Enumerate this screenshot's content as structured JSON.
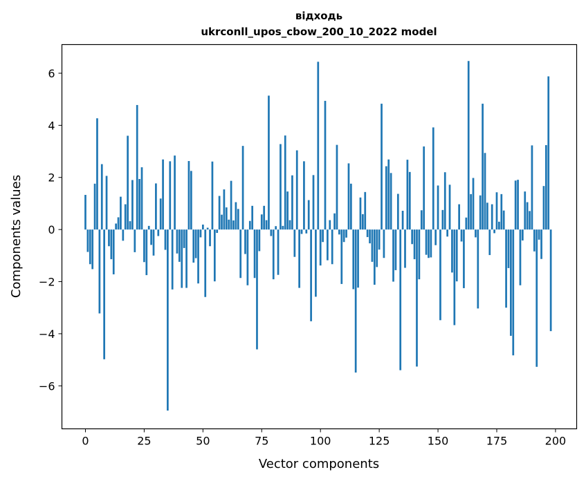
{
  "chart_data": {
    "type": "bar",
    "title_line1": "відходь",
    "title_line2": "ukrconll_upos_cbow_200_10_2022 model",
    "xlabel": "Vector components",
    "ylabel": "Components values",
    "xlim": [
      -10,
      209
    ],
    "ylim": [
      -7.65,
      7.1
    ],
    "xticks": [
      0,
      25,
      50,
      75,
      100,
      125,
      150,
      175,
      200
    ],
    "xtick_labels": [
      "0",
      "25",
      "50",
      "75",
      "100",
      "125",
      "150",
      "175",
      "200"
    ],
    "yticks": [
      -6,
      -4,
      -2,
      0,
      2,
      4,
      6
    ],
    "ytick_labels": [
      "−6",
      "−4",
      "−2",
      "0",
      "2",
      "4",
      "6"
    ],
    "bar_color": "#1f77b4",
    "grid": false,
    "values": [
      1.33,
      -0.86,
      -1.33,
      -1.52,
      1.76,
      4.27,
      -3.22,
      2.51,
      -4.98,
      2.06,
      -0.64,
      -1.14,
      -1.72,
      0.23,
      0.47,
      1.26,
      -0.43,
      0.97,
      3.6,
      0.32,
      1.9,
      -0.87,
      4.78,
      1.94,
      2.39,
      -1.25,
      -1.75,
      0.14,
      -0.59,
      -1.0,
      1.77,
      -0.25,
      1.19,
      2.69,
      -0.78,
      -6.95,
      2.62,
      -2.3,
      2.84,
      -0.92,
      -1.24,
      -2.24,
      -0.71,
      -2.24,
      2.63,
      2.25,
      -1.27,
      -1.1,
      -2.07,
      -0.3,
      0.19,
      -2.59,
      0.07,
      -0.64,
      2.61,
      -1.99,
      -0.13,
      1.29,
      0.57,
      1.54,
      0.85,
      0.38,
      1.87,
      0.35,
      1.05,
      0.79,
      -1.86,
      3.21,
      -0.94,
      -2.14,
      0.33,
      0.91,
      -1.86,
      -4.6,
      -0.83,
      0.58,
      0.91,
      0.36,
      5.14,
      -0.25,
      -1.91,
      0.13,
      -1.74,
      3.28,
      0.14,
      3.61,
      1.46,
      0.36,
      2.08,
      -1.05,
      3.04,
      -2.24,
      -0.17,
      2.62,
      -0.15,
      1.13,
      -3.52,
      2.09,
      -2.58,
      6.44,
      -1.38,
      -0.48,
      4.94,
      -1.18,
      0.36,
      -1.33,
      0.62,
      3.25,
      -0.19,
      -2.09,
      -0.48,
      -0.31,
      2.54,
      1.76,
      -2.29,
      -5.49,
      -2.23,
      1.23,
      0.59,
      1.44,
      -0.29,
      -0.53,
      -1.24,
      -2.12,
      -1.44,
      -0.77,
      4.83,
      -1.09,
      2.43,
      2.69,
      2.17,
      -2.0,
      -1.56,
      1.37,
      -5.4,
      0.72,
      -1.47,
      2.68,
      2.21,
      -0.56,
      -1.14,
      -5.26,
      -1.91,
      0.74,
      3.19,
      -0.97,
      -1.09,
      -1.07,
      3.92,
      -0.6,
      1.69,
      -3.48,
      0.75,
      2.2,
      -0.27,
      1.72,
      -1.65,
      -3.67,
      -1.99,
      0.97,
      -0.46,
      -2.25,
      0.46,
      6.47,
      1.36,
      1.98,
      -0.3,
      -3.03,
      1.31,
      4.83,
      2.94,
      1.03,
      -0.98,
      0.97,
      -0.14,
      1.43,
      0.3,
      1.36,
      0.73,
      -3.0,
      -1.48,
      -4.08,
      -4.83,
      1.88,
      1.91,
      -2.14,
      -0.42,
      1.46,
      1.05,
      0.71,
      3.23,
      -0.84,
      -5.27,
      -0.39,
      -1.13,
      1.67,
      3.24,
      5.88,
      -3.9
    ]
  }
}
